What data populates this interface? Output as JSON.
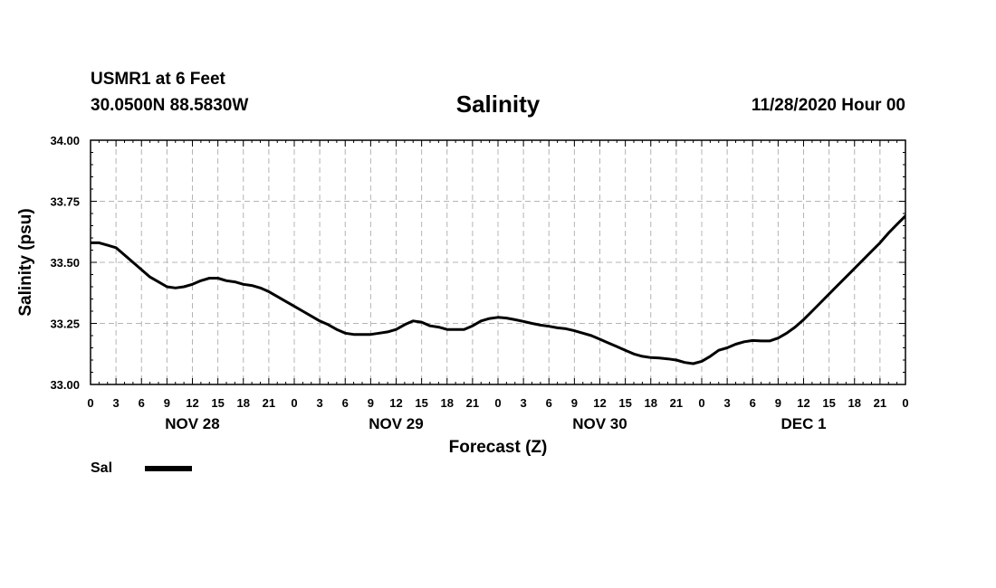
{
  "header": {
    "station": "USMR1 at 6 Feet",
    "coords": "30.0500N 88.5830W",
    "title": "Salinity",
    "run_time": "11/28/2020 Hour 00"
  },
  "chart_data": {
    "type": "line",
    "title": "Salinity",
    "xlabel": "Forecast (Z)",
    "ylabel": "Salinity (psu)",
    "ylim": [
      33.0,
      34.0
    ],
    "xlim": [
      0,
      96
    ],
    "y_ticks": [
      "33.00",
      "33.25",
      "33.50",
      "33.75",
      "34.00"
    ],
    "y_tick_values": [
      33.0,
      33.25,
      33.5,
      33.75,
      34.0
    ],
    "x_tick_labels": [
      "0",
      "3",
      "6",
      "9",
      "12",
      "15",
      "18",
      "21",
      "0",
      "3",
      "6",
      "9",
      "12",
      "15",
      "18",
      "21",
      "0",
      "3",
      "6",
      "9",
      "12",
      "15",
      "18",
      "21",
      "0",
      "3",
      "6",
      "9",
      "12",
      "15",
      "18",
      "21",
      "0"
    ],
    "day_labels": [
      {
        "label": "NOV 28",
        "hour": 12
      },
      {
        "label": "NOV 29",
        "hour": 36
      },
      {
        "label": "NOV 30",
        "hour": 60
      },
      {
        "label": "DEC 1",
        "hour": 84
      }
    ],
    "grid": true,
    "legend": "bottom-left",
    "series": [
      {
        "name": "Sal",
        "color": "#000000",
        "x": [
          0,
          1,
          2,
          3,
          4,
          5,
          6,
          7,
          8,
          9,
          10,
          11,
          12,
          13,
          14,
          15,
          16,
          17,
          18,
          19,
          20,
          21,
          22,
          23,
          24,
          25,
          26,
          27,
          28,
          29,
          30,
          31,
          32,
          33,
          34,
          35,
          36,
          37,
          38,
          39,
          40,
          41,
          42,
          43,
          44,
          45,
          46,
          47,
          48,
          49,
          50,
          51,
          52,
          53,
          54,
          55,
          56,
          57,
          58,
          59,
          60,
          61,
          62,
          63,
          64,
          65,
          66,
          67,
          68,
          69,
          70,
          71,
          72,
          73,
          74,
          75,
          76,
          77,
          78,
          79,
          80,
          81,
          82,
          83,
          84,
          85,
          86,
          87,
          88,
          89,
          90,
          91,
          92,
          93,
          94,
          95,
          96
        ],
        "values": [
          33.58,
          33.58,
          33.57,
          33.56,
          33.53,
          33.5,
          33.47,
          33.44,
          33.42,
          33.4,
          33.395,
          33.4,
          33.41,
          33.425,
          33.435,
          33.435,
          33.425,
          33.42,
          33.41,
          33.405,
          33.395,
          33.38,
          33.36,
          33.34,
          33.32,
          33.3,
          33.28,
          33.26,
          33.245,
          33.225,
          33.21,
          33.205,
          33.205,
          33.205,
          33.21,
          33.215,
          33.225,
          33.245,
          33.26,
          33.255,
          33.24,
          33.235,
          33.225,
          33.225,
          33.225,
          33.24,
          33.26,
          33.27,
          33.275,
          33.272,
          33.265,
          33.258,
          33.25,
          33.243,
          33.238,
          33.232,
          33.228,
          33.22,
          33.21,
          33.2,
          33.185,
          33.17,
          33.155,
          33.14,
          33.125,
          33.115,
          33.11,
          33.108,
          33.105,
          33.1,
          33.09,
          33.085,
          33.095,
          33.115,
          33.14,
          33.15,
          33.165,
          33.175,
          33.18,
          33.178,
          33.178,
          33.19,
          33.21,
          33.235,
          33.265,
          33.3,
          33.335,
          33.37,
          33.405,
          33.44,
          33.475,
          33.51,
          33.545,
          33.58,
          33.62,
          33.655,
          33.69
        ]
      }
    ]
  },
  "legend": {
    "label": "Sal"
  }
}
